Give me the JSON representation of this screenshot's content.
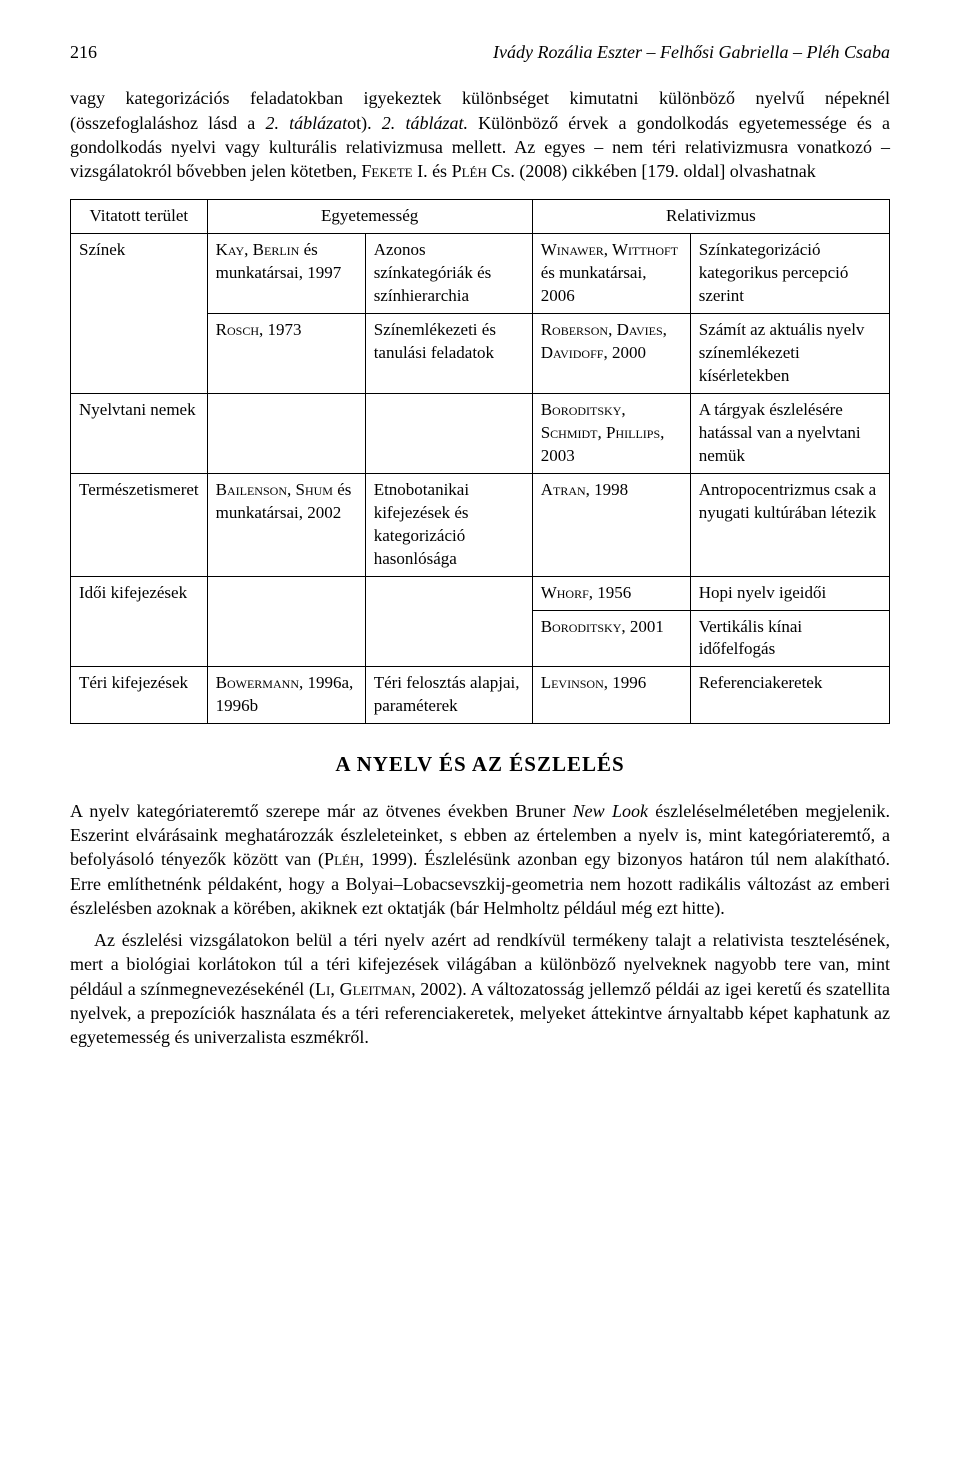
{
  "header": {
    "page_number": "216",
    "running_head": "Ivády Rozália Eszter – Felhősi Gabriella – Pléh Csaba"
  },
  "intro_para": "vagy kategorizációs feladatokban igyekeztek különbséget kimutatni különböző nyelvű népeknél (összefoglaláshoz lásd a 2. táblázatot). 2. táblázat. Különböző érvek a gondolkodás egyetemessége és a gondolkodás nyelvi vagy kulturális relativizmusa mellett. Az egyes – nem téri relativizmusra vonatkozó – vizsgálatokról bővebben jelen kötetben, FEKETE I. és PLÉH Cs. (2008) cikkében [179. oldal] olvashatnak",
  "table": {
    "header": {
      "c0": "Vitatott terület",
      "c1": "Egyetemesség",
      "c2": "Relativizmus"
    },
    "rows": [
      {
        "c0": "Színek",
        "c1": "KAY, BERLIN és munkatársai, 1997",
        "c2": "Azonos színkategóriák és színhierarchia",
        "c3": "WINAWER, WITTHOFT és munkatársai, 2006",
        "c4": "Színkategorizáció kategorikus percepció szerint"
      },
      {
        "c0": "",
        "c1": "ROSCH, 1973",
        "c2": "Színemlékezeti és tanulási feladatok",
        "c3": "ROBERSON, DAVIES, DAVIDOFF, 2000",
        "c4": "Számít az aktuális nyelv színemlékezeti kísérletekben"
      },
      {
        "c0": "Nyelvtani nemek",
        "c1": "",
        "c2": "",
        "c3": "BORODITSKY, SCHMIDT, PHILLIPS, 2003",
        "c4": "A tárgyak észlelésére hatással van a nyelvtani nemük"
      },
      {
        "c0": "Természetismeret",
        "c1": "BAILENSON, SHUM és munkatársai, 2002",
        "c2": "Etnobotanikai kifejezések és kategorizáció hasonlósága",
        "c3": "ATRAN, 1998",
        "c4": "Antropocentrizmus csak a nyugati kultúrában létezik"
      },
      {
        "c0": "Idői kifejezések",
        "c1": "",
        "c2": "",
        "c3": "WHORF, 1956",
        "c4": "Hopi nyelv igeidői"
      },
      {
        "c0": "",
        "c1": "",
        "c2": "",
        "c3": "BORODITSKY, 2001",
        "c4": "Vertikális kínai időfelfogás"
      },
      {
        "c0": "Téri kifejezések",
        "c1": "BOWERMANN, 1996a, 1996b",
        "c2": "Téri felosztás alapjai, paraméterek",
        "c3": "LEVINSON, 1996",
        "c4": "Referenciakeretek"
      }
    ]
  },
  "section_title": "A NYELV ÉS AZ ÉSZLELÉS",
  "body_para1": "A nyelv kategóriateremtő szerepe már az ötvenes években Bruner New Look észleléselméletében megjelenik. Eszerint elvárásaink meghatározzák észleleteinket, s ebben az értelemben a nyelv is, mint kategóriateremtő, a befolyásoló tényezők között van (PLÉH, 1999). Észlelésünk azonban egy bizonyos határon túl nem alakítható. Erre említhetnénk példaként, hogy a Bolyai–Lobacsevszkij-geometria nem hozott radikális változást az emberi észlelésben azoknak a körében, akiknek ezt oktatják (bár Helmholtz például még ezt hitte).",
  "body_para2": "Az észlelési vizsgálatokon belül a téri nyelv azért ad rendkívül termékeny talajt a relativista tesztelésének, mert a biológiai korlátokon túl a téri kifejezések világában a különböző nyelveknek nagyobb tere van, mint például a színmegnevezésekénél (LI, GLEITMAN, 2002). A változatosság jellemző példái az igei keretű és szatellita nyelvek, a prepozíciók használata és a téri referenciakeretek, melyeket áttekintve árnyaltabb képet kaphatunk az egyetemesség és univerzalista eszmékről."
}
